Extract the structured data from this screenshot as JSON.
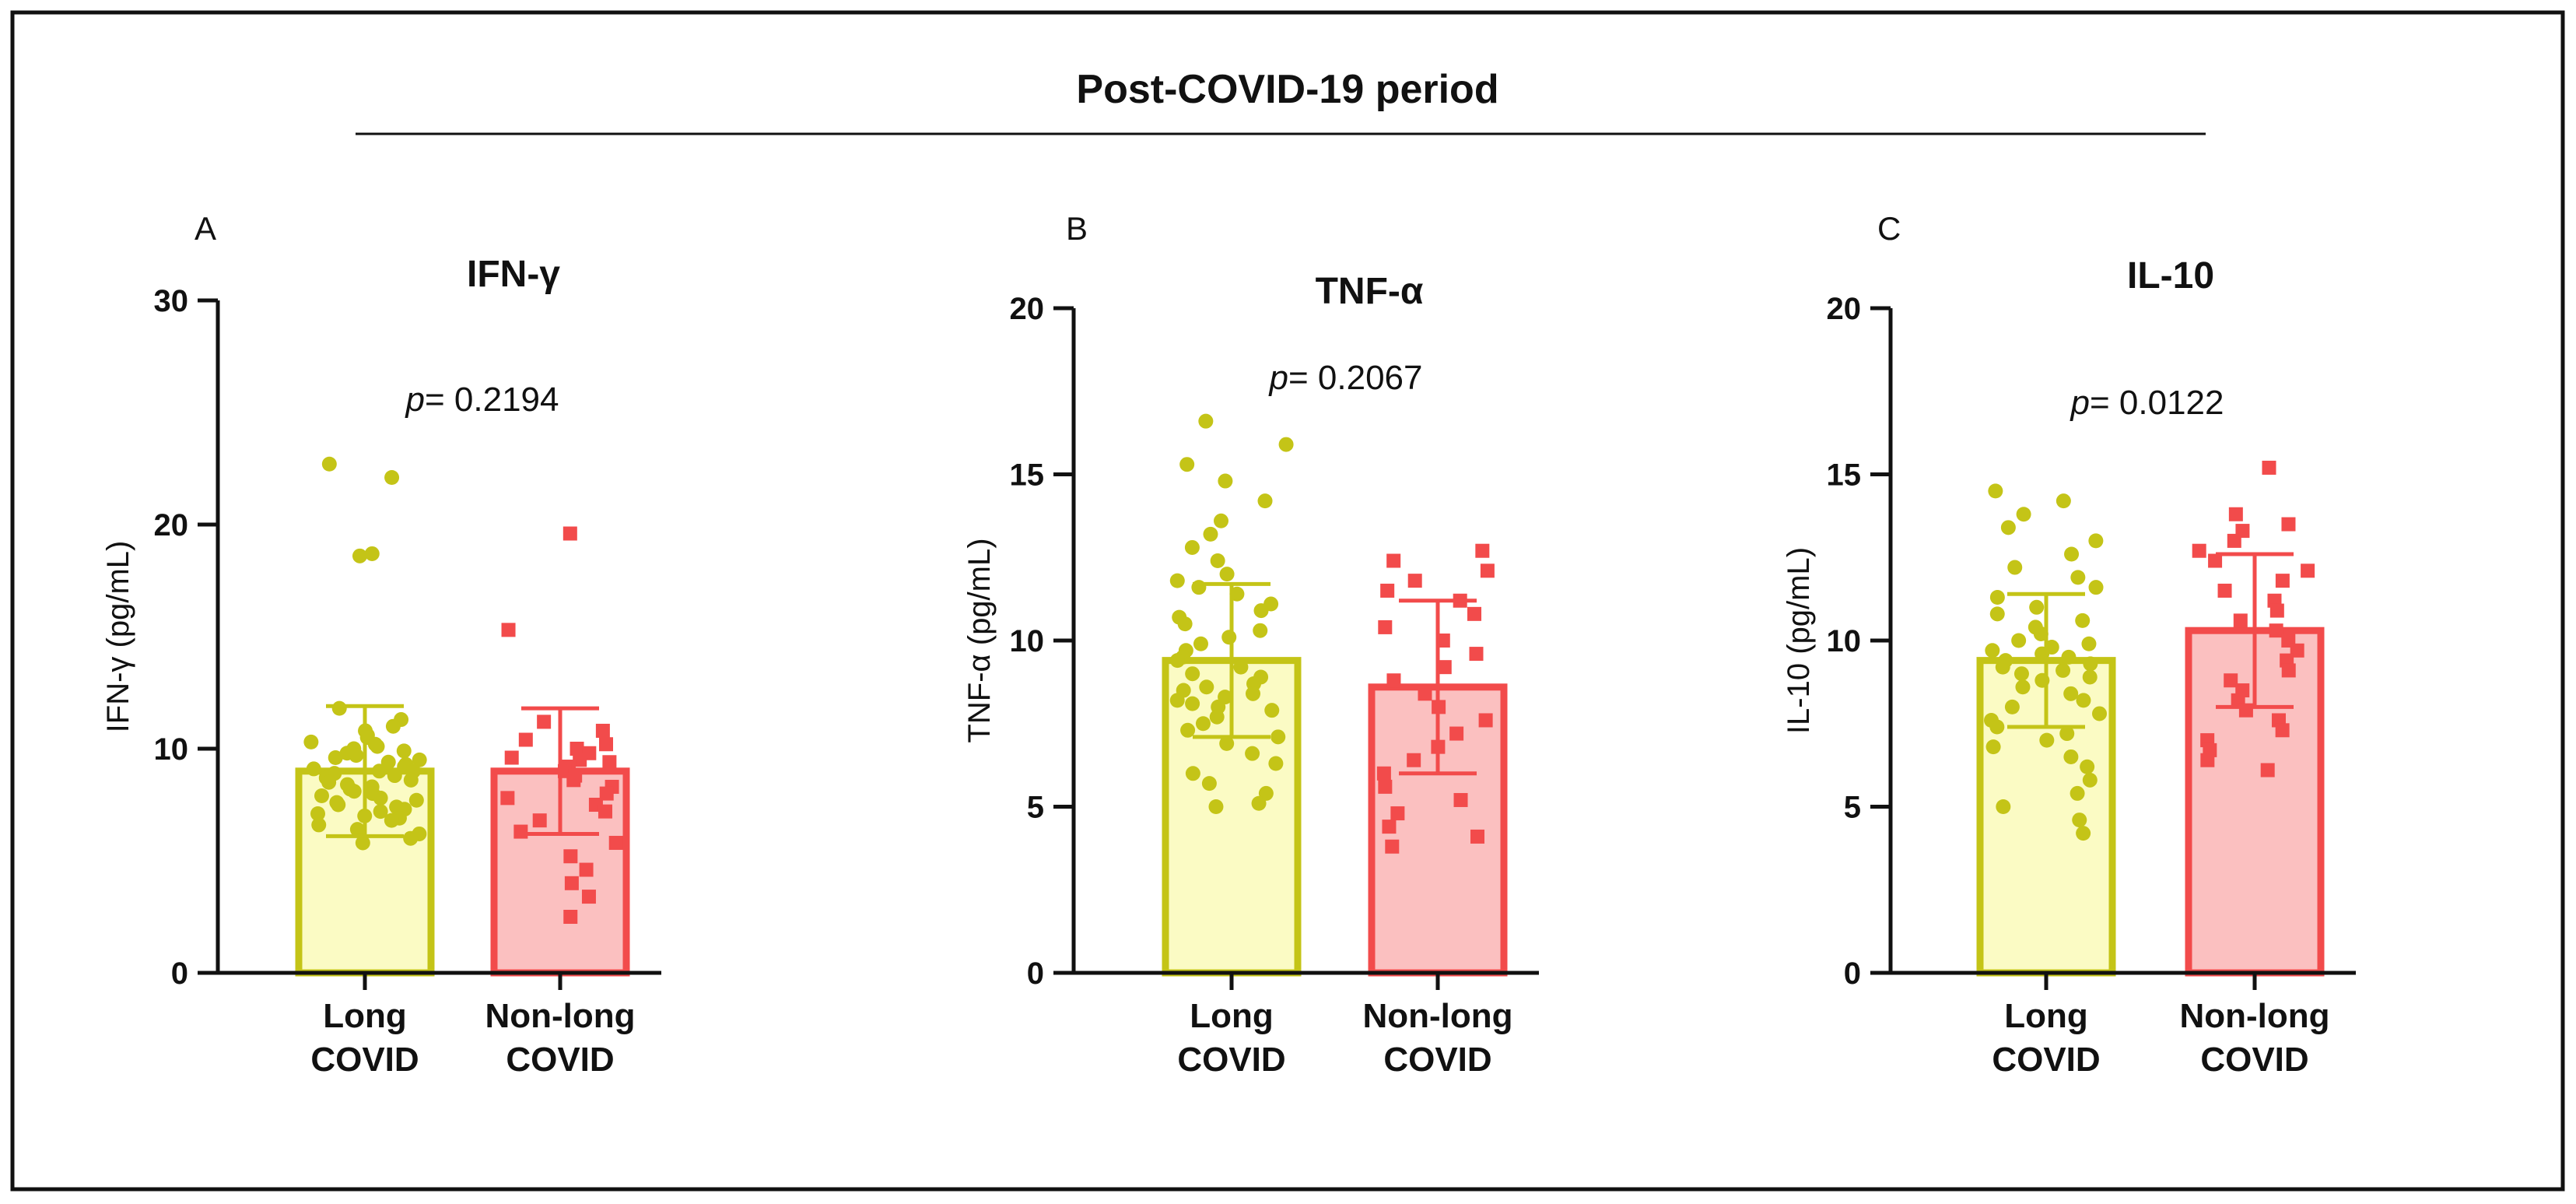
{
  "figure_title": "Post-COVID-19 period",
  "colors": {
    "long_stroke": "#C4C417",
    "long_fill": "#FBFBC4",
    "long_point": "#C4C417",
    "nonlong_stroke": "#F24B4B",
    "nonlong_fill": "#FBC0C0",
    "nonlong_point": "#F24B4B"
  },
  "chart_data": [
    {
      "type": "bar",
      "panel": "A",
      "title": "IFN-γ",
      "ylabel": "IFN-γ (pg/mL)",
      "p_prefix": "p",
      "p_text": "= 0.2194",
      "ylim": [
        0,
        30
      ],
      "yticks": [
        0,
        10,
        20,
        30
      ],
      "categories": [
        [
          "Long",
          "COVID"
        ],
        [
          "Non-long",
          "COVID"
        ]
      ],
      "series": [
        {
          "name": "Long COVID",
          "mean": 9.0,
          "sd": 2.9,
          "points": [
            22.7,
            22.1,
            18.7,
            18.6,
            11.8,
            11.3,
            11.0,
            10.8,
            10.6,
            10.5,
            10.3,
            10.2,
            10.1,
            10.0,
            9.9,
            9.8,
            9.7,
            9.6,
            9.5,
            9.4,
            9.3,
            9.2,
            9.1,
            9.0,
            9.0,
            8.9,
            8.8,
            8.7,
            8.6,
            8.5,
            8.4,
            8.3,
            8.2,
            8.1,
            8.0,
            7.9,
            7.8,
            7.7,
            7.6,
            7.5,
            7.4,
            7.3,
            7.2,
            7.1,
            7.0,
            6.9,
            6.8,
            6.6,
            6.4,
            6.2,
            6.0,
            5.8
          ]
        },
        {
          "name": "Non-long COVID",
          "mean": 9.0,
          "sd": 2.8,
          "points": [
            19.6,
            15.3,
            11.2,
            10.8,
            10.4,
            10.2,
            10.0,
            9.8,
            9.6,
            9.5,
            9.4,
            9.2,
            9.0,
            8.8,
            8.6,
            8.3,
            8.0,
            7.8,
            7.5,
            7.2,
            6.8,
            6.3,
            5.8,
            5.2,
            4.6,
            4.0,
            3.4,
            2.5
          ]
        }
      ]
    },
    {
      "type": "bar",
      "panel": "B",
      "title": "TNF-α",
      "ylabel": "TNF-α (pg/mL)",
      "p_prefix": "p",
      "p_text": "= 0.2067",
      "ylim": [
        0,
        20
      ],
      "yticks": [
        0,
        5,
        10,
        15,
        20
      ],
      "categories": [
        [
          "Long",
          "COVID"
        ],
        [
          "Non-long",
          "COVID"
        ]
      ],
      "series": [
        {
          "name": "Long COVID",
          "mean": 9.4,
          "sd": 2.3,
          "points": [
            16.6,
            15.9,
            15.3,
            14.8,
            14.2,
            13.6,
            13.2,
            12.8,
            12.4,
            12.0,
            11.8,
            11.6,
            11.4,
            11.1,
            10.9,
            10.7,
            10.5,
            10.3,
            10.1,
            9.9,
            9.7,
            9.5,
            9.4,
            9.2,
            9.0,
            8.9,
            8.7,
            8.6,
            8.5,
            8.4,
            8.3,
            8.2,
            8.1,
            8.0,
            7.9,
            7.7,
            7.5,
            7.3,
            7.1,
            6.9,
            6.6,
            6.3,
            6.0,
            5.7,
            5.4,
            5.1,
            5.0
          ]
        },
        {
          "name": "Non-long COVID",
          "mean": 8.6,
          "sd": 2.6,
          "points": [
            12.7,
            12.4,
            12.1,
            11.8,
            11.5,
            11.2,
            10.8,
            10.4,
            10.0,
            9.6,
            9.2,
            8.8,
            8.4,
            8.0,
            7.6,
            7.2,
            6.8,
            6.4,
            6.0,
            5.6,
            5.2,
            4.8,
            4.4,
            4.1,
            3.8
          ]
        }
      ]
    },
    {
      "type": "bar",
      "panel": "C",
      "title": "IL-10",
      "ylabel": "IL-10 (pg/mL)",
      "p_prefix": "p",
      "p_text": "= 0.0122",
      "ylim": [
        0,
        20
      ],
      "yticks": [
        0,
        5,
        10,
        15,
        20
      ],
      "categories": [
        [
          "Long",
          "COVID"
        ],
        [
          "Non-long",
          "COVID"
        ]
      ],
      "series": [
        {
          "name": "Long COVID",
          "mean": 9.4,
          "sd": 2.0,
          "points": [
            14.5,
            14.2,
            13.8,
            13.4,
            13.0,
            12.6,
            12.2,
            11.9,
            11.6,
            11.3,
            11.0,
            10.8,
            10.6,
            10.4,
            10.2,
            10.0,
            9.9,
            9.8,
            9.7,
            9.6,
            9.5,
            9.4,
            9.3,
            9.2,
            9.1,
            9.0,
            8.9,
            8.8,
            8.6,
            8.4,
            8.2,
            8.0,
            7.8,
            7.6,
            7.4,
            7.2,
            7.0,
            6.8,
            6.5,
            6.2,
            5.8,
            5.4,
            5.0,
            4.6,
            4.2
          ]
        },
        {
          "name": "Non-long COVID",
          "mean": 10.3,
          "sd": 2.3,
          "points": [
            15.2,
            13.8,
            13.5,
            13.3,
            13.0,
            12.7,
            12.4,
            12.1,
            11.8,
            11.5,
            11.2,
            10.9,
            10.6,
            10.3,
            10.0,
            9.7,
            9.4,
            9.1,
            8.8,
            8.5,
            8.2,
            7.9,
            7.6,
            7.3,
            7.0,
            6.7,
            6.4,
            6.1
          ]
        }
      ]
    }
  ]
}
